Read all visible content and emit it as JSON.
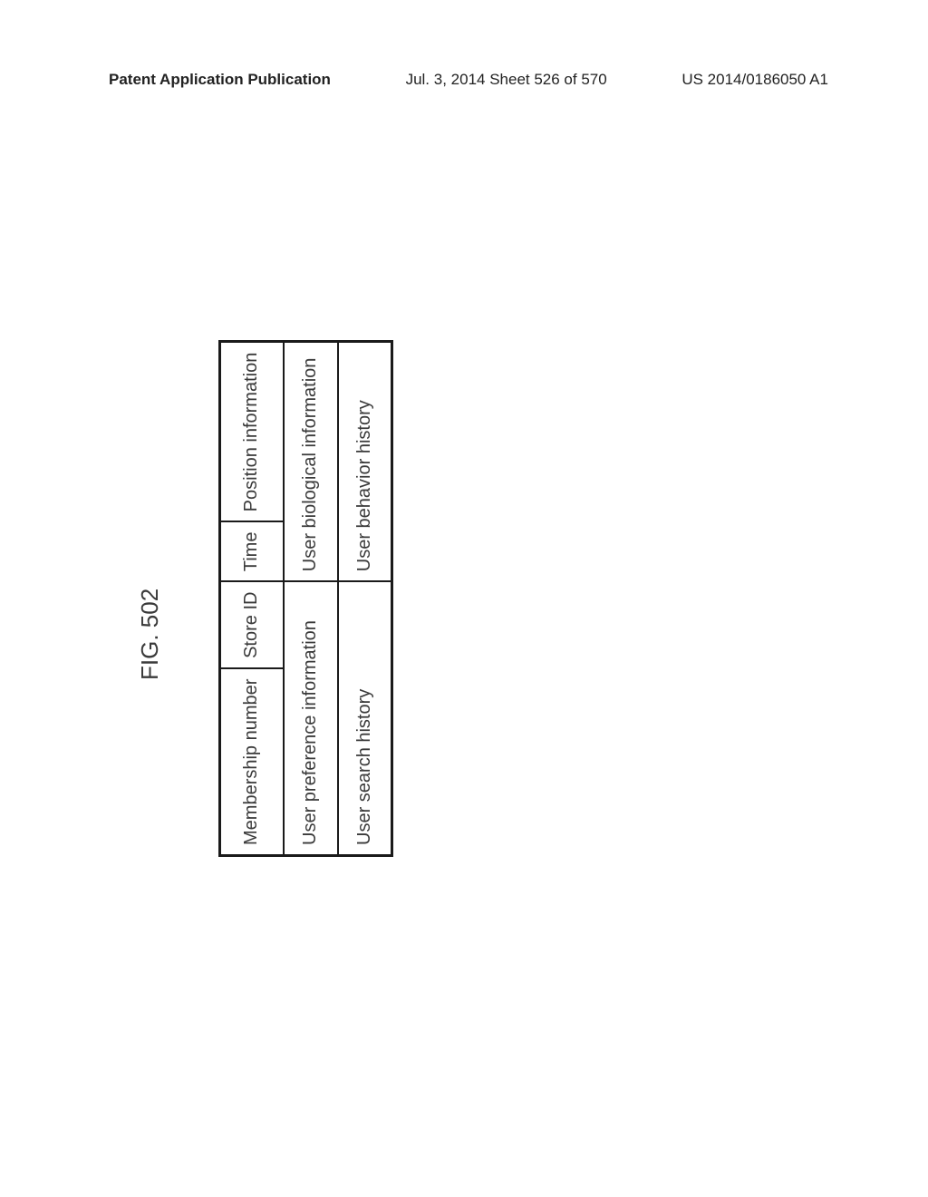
{
  "header": {
    "left": "Patent Application Publication",
    "center": "Jul. 3, 2014  Sheet 526 of 570",
    "right": "US 2014/0186050 A1"
  },
  "figure": {
    "label": "FIG. 502",
    "table": {
      "type": "table",
      "columns": 4,
      "rows": [
        {
          "cells": [
            {
              "text": "Membership number",
              "colspan": 1
            },
            {
              "text": "Store ID",
              "colspan": 1
            },
            {
              "text": "Time",
              "colspan": 1
            },
            {
              "text": "Position information",
              "colspan": 1
            }
          ]
        },
        {
          "cells": [
            {
              "text": "User preference information",
              "colspan": 2
            },
            {
              "text": "User biological information",
              "colspan": 2
            }
          ]
        },
        {
          "cells": [
            {
              "text": "User search history",
              "colspan": 2
            },
            {
              "text": "User behavior history",
              "colspan": 2
            }
          ]
        }
      ],
      "border_color": "#1a1a1a",
      "text_color": "#3a3a3a",
      "background_color": "#ffffff",
      "cell_fontsize": 20,
      "outer_border_width": 3,
      "inner_border_width": 2
    }
  }
}
